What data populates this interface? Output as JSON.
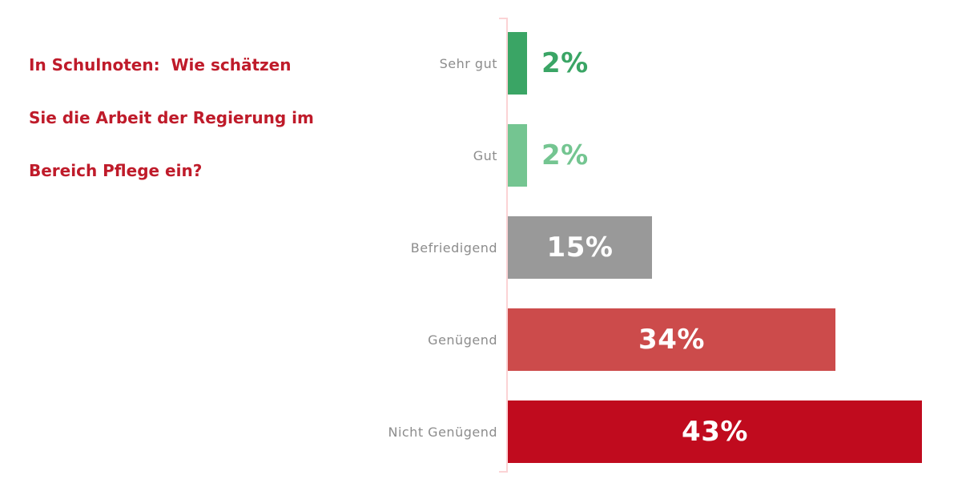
{
  "title_lines": [
    "In Schulnoten:  Wie schätzen",
    "Sie die Arbeit der Regierung im",
    "Bereich Pflege ein?"
  ],
  "chart_data": {
    "type": "bar",
    "orientation": "horizontal",
    "title": "In Schulnoten: Wie schätzen Sie die Arbeit der Regierung im Bereich Pflege ein?",
    "categories": [
      "Sehr gut",
      "Gut",
      "Befriedigend",
      "Genügend",
      "Nicht Genügend"
    ],
    "values": [
      2,
      2,
      15,
      34,
      43
    ],
    "value_labels": [
      "2%",
      "2%",
      "15%",
      "34%",
      "43%"
    ],
    "unit": "%",
    "xlim": [
      0,
      48.5
    ],
    "bar_colors": [
      "#3aa565",
      "#74c591",
      "#999999",
      "#cc4b4b",
      "#c00b1e"
    ],
    "value_label_placement": [
      "outside",
      "outside",
      "inside",
      "inside",
      "inside"
    ],
    "grid": false,
    "legend": false
  },
  "colors": {
    "background": "#ffffff",
    "title_text": "#bf1b2a",
    "axis_line": "#fbd3d5",
    "category_label": "#8c8c8c",
    "value_inside": "#ffffff"
  }
}
